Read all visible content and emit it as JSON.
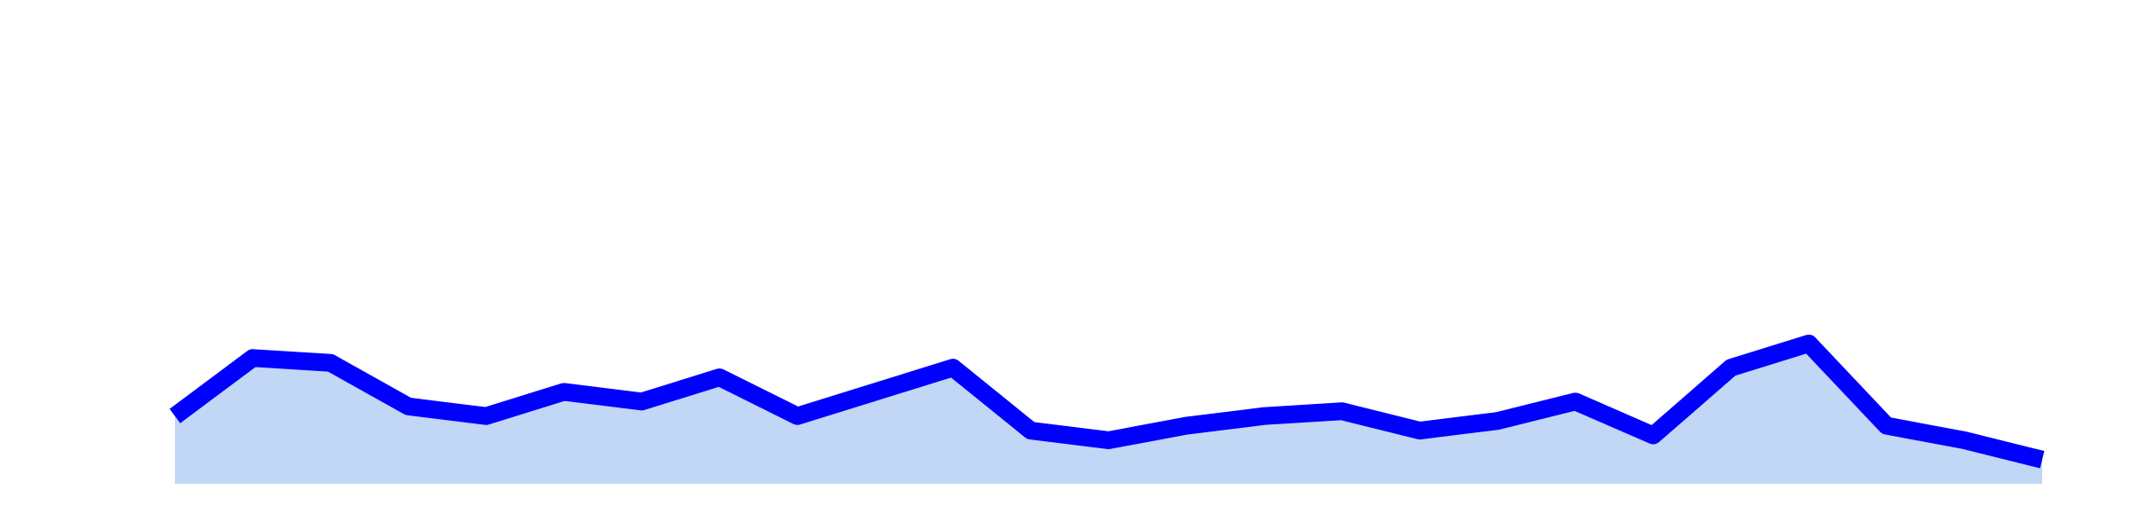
{
  "chart_data": {
    "type": "area",
    "title": "",
    "xlabel": "",
    "ylabel": "",
    "axes_visible": false,
    "grid": false,
    "legend": "none",
    "x": [
      0,
      1,
      2,
      3,
      4,
      5,
      6,
      7,
      8,
      9,
      10,
      11,
      12,
      13,
      14,
      15,
      16,
      17,
      18,
      19,
      20,
      21,
      22,
      23,
      24
    ],
    "ylim": [
      0,
      100
    ],
    "series": [
      {
        "values": [
          14,
          26,
          25,
          16,
          14,
          19,
          17,
          22,
          14,
          19,
          24,
          11,
          9,
          12,
          14,
          15,
          11,
          13,
          17,
          10,
          24,
          29,
          12,
          9,
          5
        ],
        "line_color": "#0000ff",
        "fill_color": "#c2d6f5"
      }
    ]
  }
}
